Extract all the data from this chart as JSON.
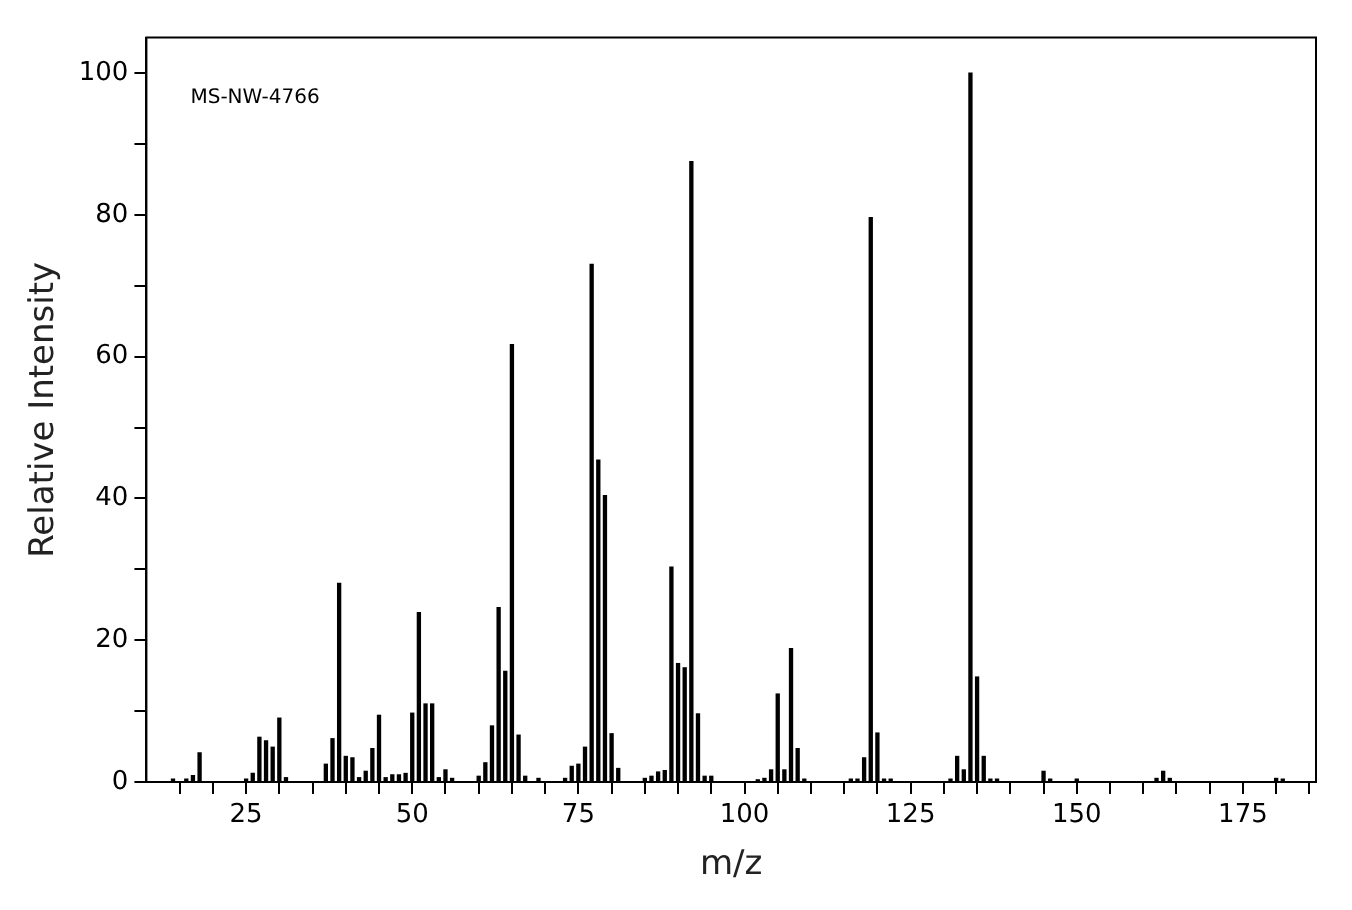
{
  "chart_data": {
    "type": "bar",
    "xlabel": "m/z",
    "ylabel": "Relative Intensity",
    "annotations": [
      "MS-NW-4766"
    ],
    "x": [
      14,
      16,
      17,
      18,
      25,
      26,
      27,
      28,
      29,
      30,
      31,
      37,
      38,
      39,
      40,
      41,
      42,
      43,
      44,
      45,
      46,
      47,
      48,
      49,
      50,
      51,
      52,
      53,
      54,
      55,
      56,
      60,
      61,
      62,
      63,
      64,
      65,
      66,
      67,
      69,
      73,
      74,
      75,
      76,
      77,
      78,
      79,
      80,
      81,
      85,
      86,
      87,
      88,
      89,
      90,
      91,
      92,
      93,
      94,
      95,
      102,
      103,
      104,
      105,
      106,
      107,
      108,
      109,
      116,
      117,
      118,
      119,
      120,
      121,
      122,
      131,
      132,
      133,
      134,
      135,
      136,
      137,
      138,
      145,
      146,
      150,
      162,
      163,
      164,
      180,
      181
    ],
    "values": [
      0.4,
      0.4,
      0.9,
      4.1,
      0.4,
      1.2,
      6.3,
      5.8,
      4.9,
      9.0,
      0.6,
      2.5,
      6.1,
      28.0,
      3.6,
      3.4,
      0.6,
      1.5,
      4.7,
      9.4,
      0.6,
      1.0,
      1.0,
      1.2,
      9.7,
      23.9,
      11.0,
      11.0,
      0.6,
      1.7,
      0.5,
      0.8,
      2.7,
      7.9,
      24.6,
      15.6,
      61.7,
      6.6,
      0.8,
      0.5,
      0.5,
      2.2,
      2.5,
      4.9,
      73.0,
      45.4,
      40.4,
      6.8,
      1.9,
      0.5,
      0.8,
      1.4,
      1.6,
      30.3,
      16.7,
      16.1,
      87.5,
      9.6,
      0.8,
      0.8,
      0.3,
      0.5,
      1.7,
      12.4,
      1.7,
      18.8,
      4.7,
      0.4,
      0.4,
      0.4,
      3.4,
      79.6,
      6.9,
      0.4,
      0.4,
      0.4,
      3.6,
      1.7,
      100,
      14.8,
      3.6,
      0.4,
      0.4,
      1.5,
      0.4,
      0.4,
      0.5,
      1.5,
      0.5,
      0.5,
      0.4
    ],
    "color": "#000000",
    "xlim": [
      10,
      186
    ],
    "xticks": [
      {
        "value": 15,
        "label": null
      },
      {
        "value": 20,
        "label": null
      },
      25,
      {
        "value": 30,
        "label": null
      },
      {
        "value": 35,
        "label": null
      },
      {
        "value": 40,
        "label": null
      },
      {
        "value": 45,
        "label": null
      },
      50,
      {
        "value": 55,
        "label": null
      },
      {
        "value": 60,
        "label": null
      },
      {
        "value": 65,
        "label": null
      },
      {
        "value": 70,
        "label": null
      },
      75,
      {
        "value": 80,
        "label": null
      },
      {
        "value": 85,
        "label": null
      },
      {
        "value": 90,
        "label": null
      },
      {
        "value": 95,
        "label": null
      },
      100,
      {
        "value": 105,
        "label": null
      },
      {
        "value": 110,
        "label": null
      },
      {
        "value": 115,
        "label": null
      },
      {
        "value": 120,
        "label": null
      },
      125,
      {
        "value": 130,
        "label": null
      },
      {
        "value": 135,
        "label": null
      },
      {
        "value": 140,
        "label": null
      },
      {
        "value": 145,
        "label": null
      },
      150,
      {
        "value": 155,
        "label": null
      },
      {
        "value": 160,
        "label": null
      },
      {
        "value": 165,
        "label": null
      },
      {
        "value": 170,
        "label": null
      },
      175,
      {
        "value": 180,
        "label": null
      },
      {
        "value": 185,
        "label": null
      }
    ],
    "ylim": [
      0,
      105
    ],
    "yticks": [
      0,
      {
        "value": 10,
        "label": null
      },
      20,
      {
        "value": 30,
        "label": null
      },
      40,
      {
        "value": 50,
        "label": null
      },
      60,
      {
        "value": 70,
        "label": null
      },
      80,
      {
        "value": 90,
        "label": null
      },
      100
    ],
    "grid": false,
    "legend": false
  }
}
